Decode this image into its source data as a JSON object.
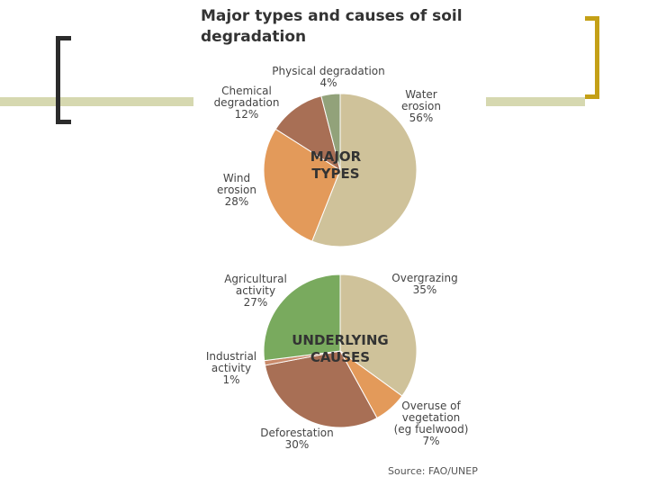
{
  "title": "Major types and causes of soil degradation",
  "source": "Source: FAO/UNEP",
  "chart_data": [
    {
      "type": "pie",
      "center_label": "MAJOR\nTYPES",
      "slices": [
        {
          "name": "Water\nerosion",
          "value": 56,
          "pct": "56%",
          "color": "#cfc29a"
        },
        {
          "name": "Wind\nerosion",
          "value": 28,
          "pct": "28%",
          "color": "#e39a5a"
        },
        {
          "name": "Chemical\ndegradation",
          "value": 12,
          "pct": "12%",
          "color": "#a86f55"
        },
        {
          "name": "Physical degradation",
          "value": 4,
          "pct": "4%",
          "color": "#92a27a"
        }
      ]
    },
    {
      "type": "pie",
      "center_label": "UNDERLYING\nCAUSES",
      "slices": [
        {
          "name": "Overgrazing",
          "value": 35,
          "pct": "35%",
          "color": "#cfc29a"
        },
        {
          "name": "Overuse of\nvegetation\n(eg fuelwood)",
          "value": 7,
          "pct": "7%",
          "color": "#e39a5a"
        },
        {
          "name": "Deforestation",
          "value": 30,
          "pct": "30%",
          "color": "#a86f55"
        },
        {
          "name": "Industrial\nactivity",
          "value": 1,
          "pct": "1%",
          "color": "#c98a6a"
        },
        {
          "name": "Agricultural\nactivity",
          "value": 27,
          "pct": "27%",
          "color": "#79aa5e"
        }
      ]
    }
  ]
}
